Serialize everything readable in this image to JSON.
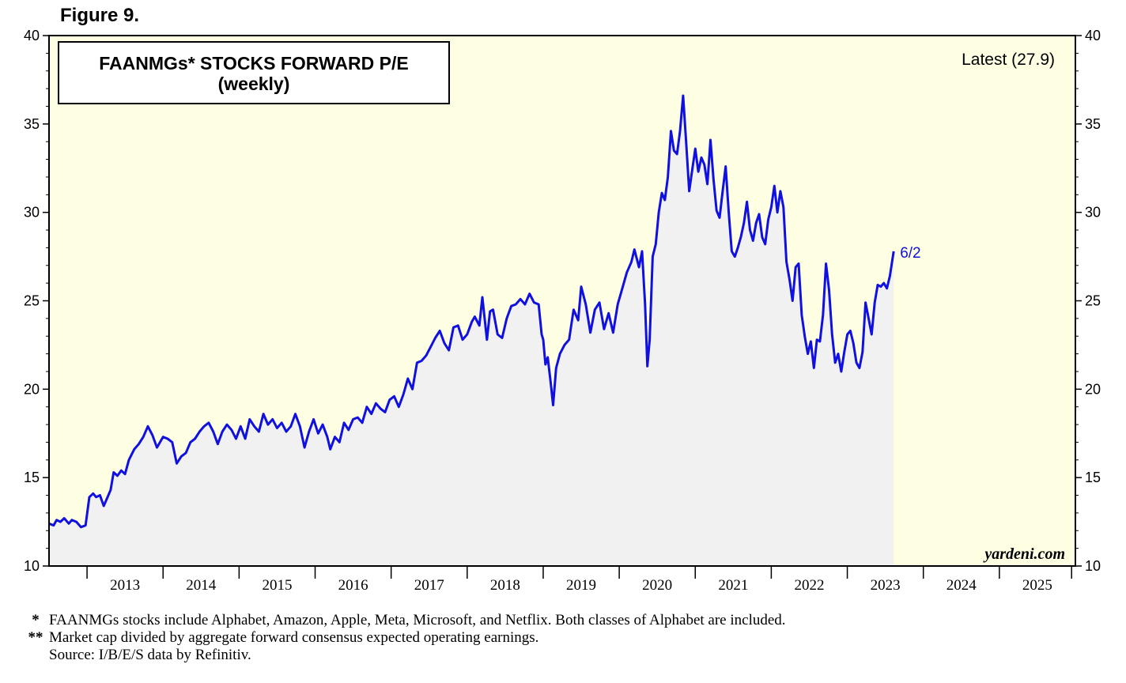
{
  "figure_label": "Figure 9.",
  "chart_data": {
    "type": "area",
    "title": "FAANMGs* STOCKS FORWARD P/E",
    "subtitle": "(weekly)",
    "latest_label": "Latest (27.9)",
    "end_label": "6/2",
    "watermark": "yardeni.com",
    "xlabel": "",
    "ylabel": "",
    "xlim": [
      2012.5,
      2026.0
    ],
    "ylim": [
      10,
      40
    ],
    "y_ticks": [
      10,
      15,
      20,
      25,
      30,
      35,
      40
    ],
    "year_labels": [
      "2013",
      "2014",
      "2015",
      "2016",
      "2017",
      "2018",
      "2019",
      "2020",
      "2021",
      "2022",
      "2023",
      "2024",
      "2025"
    ],
    "grid": false,
    "colors": {
      "line": "#1010e0",
      "fill": "#f1f1f1",
      "background": "#fefee2"
    },
    "series": [
      {
        "name": "FAANMGs forward P/E",
        "points": [
          [
            2012.5,
            12.4
          ],
          [
            2012.56,
            12.3
          ],
          [
            2012.6,
            12.6
          ],
          [
            2012.65,
            12.5
          ],
          [
            2012.7,
            12.7
          ],
          [
            2012.76,
            12.4
          ],
          [
            2012.8,
            12.6
          ],
          [
            2012.86,
            12.5
          ],
          [
            2012.92,
            12.2
          ],
          [
            2012.98,
            12.3
          ],
          [
            2013.03,
            13.9
          ],
          [
            2013.08,
            14.1
          ],
          [
            2013.12,
            13.9
          ],
          [
            2013.17,
            14.0
          ],
          [
            2013.22,
            13.4
          ],
          [
            2013.26,
            13.8
          ],
          [
            2013.31,
            14.3
          ],
          [
            2013.35,
            15.3
          ],
          [
            2013.4,
            15.1
          ],
          [
            2013.45,
            15.4
          ],
          [
            2013.5,
            15.2
          ],
          [
            2013.55,
            16.0
          ],
          [
            2013.62,
            16.6
          ],
          [
            2013.68,
            16.9
          ],
          [
            2013.74,
            17.3
          ],
          [
            2013.8,
            17.9
          ],
          [
            2013.86,
            17.4
          ],
          [
            2013.92,
            16.7
          ],
          [
            2014.0,
            17.3
          ],
          [
            2014.06,
            17.2
          ],
          [
            2014.12,
            17.0
          ],
          [
            2014.18,
            15.8
          ],
          [
            2014.24,
            16.2
          ],
          [
            2014.3,
            16.4
          ],
          [
            2014.36,
            17.0
          ],
          [
            2014.42,
            17.2
          ],
          [
            2014.48,
            17.6
          ],
          [
            2014.54,
            17.9
          ],
          [
            2014.6,
            18.1
          ],
          [
            2014.66,
            17.6
          ],
          [
            2014.72,
            16.9
          ],
          [
            2014.78,
            17.6
          ],
          [
            2014.84,
            18.0
          ],
          [
            2014.9,
            17.7
          ],
          [
            2014.96,
            17.2
          ],
          [
            2015.02,
            17.9
          ],
          [
            2015.08,
            17.2
          ],
          [
            2015.14,
            18.3
          ],
          [
            2015.2,
            17.9
          ],
          [
            2015.26,
            17.6
          ],
          [
            2015.32,
            18.6
          ],
          [
            2015.38,
            18.0
          ],
          [
            2015.44,
            18.3
          ],
          [
            2015.5,
            17.8
          ],
          [
            2015.56,
            18.1
          ],
          [
            2015.62,
            17.6
          ],
          [
            2015.68,
            17.9
          ],
          [
            2015.74,
            18.6
          ],
          [
            2015.8,
            17.9
          ],
          [
            2015.86,
            16.7
          ],
          [
            2015.92,
            17.6
          ],
          [
            2015.98,
            18.3
          ],
          [
            2016.04,
            17.5
          ],
          [
            2016.1,
            18.0
          ],
          [
            2016.16,
            17.3
          ],
          [
            2016.2,
            16.6
          ],
          [
            2016.26,
            17.3
          ],
          [
            2016.32,
            17.0
          ],
          [
            2016.38,
            18.1
          ],
          [
            2016.44,
            17.7
          ],
          [
            2016.5,
            18.3
          ],
          [
            2016.56,
            18.4
          ],
          [
            2016.62,
            18.1
          ],
          [
            2016.68,
            19.0
          ],
          [
            2016.74,
            18.6
          ],
          [
            2016.8,
            19.2
          ],
          [
            2016.86,
            18.9
          ],
          [
            2016.92,
            18.7
          ],
          [
            2016.98,
            19.4
          ],
          [
            2017.04,
            19.6
          ],
          [
            2017.1,
            19.0
          ],
          [
            2017.16,
            19.7
          ],
          [
            2017.22,
            20.6
          ],
          [
            2017.28,
            20.0
          ],
          [
            2017.34,
            21.5
          ],
          [
            2017.4,
            21.6
          ],
          [
            2017.46,
            21.9
          ],
          [
            2017.52,
            22.4
          ],
          [
            2017.58,
            22.9
          ],
          [
            2017.64,
            23.3
          ],
          [
            2017.7,
            22.6
          ],
          [
            2017.76,
            22.2
          ],
          [
            2017.82,
            23.5
          ],
          [
            2017.88,
            23.6
          ],
          [
            2017.94,
            22.8
          ],
          [
            2018.0,
            23.1
          ],
          [
            2018.06,
            23.8
          ],
          [
            2018.1,
            24.1
          ],
          [
            2018.16,
            23.6
          ],
          [
            2018.2,
            25.2
          ],
          [
            2018.26,
            22.8
          ],
          [
            2018.3,
            24.4
          ],
          [
            2018.34,
            24.5
          ],
          [
            2018.4,
            23.1
          ],
          [
            2018.46,
            22.9
          ],
          [
            2018.52,
            24.0
          ],
          [
            2018.58,
            24.7
          ],
          [
            2018.64,
            24.8
          ],
          [
            2018.7,
            25.1
          ],
          [
            2018.76,
            24.8
          ],
          [
            2018.82,
            25.4
          ],
          [
            2018.88,
            24.9
          ],
          [
            2018.94,
            24.8
          ],
          [
            2018.98,
            23.1
          ],
          [
            2019.0,
            22.8
          ],
          [
            2019.03,
            21.4
          ],
          [
            2019.06,
            21.8
          ],
          [
            2019.1,
            20.3
          ],
          [
            2019.13,
            19.1
          ],
          [
            2019.17,
            21.2
          ],
          [
            2019.22,
            22.0
          ],
          [
            2019.28,
            22.5
          ],
          [
            2019.34,
            22.8
          ],
          [
            2019.4,
            24.5
          ],
          [
            2019.46,
            23.9
          ],
          [
            2019.5,
            25.8
          ],
          [
            2019.56,
            24.8
          ],
          [
            2019.62,
            23.2
          ],
          [
            2019.68,
            24.5
          ],
          [
            2019.74,
            24.9
          ],
          [
            2019.8,
            23.4
          ],
          [
            2019.86,
            24.3
          ],
          [
            2019.92,
            23.2
          ],
          [
            2019.98,
            24.8
          ],
          [
            2020.04,
            25.7
          ],
          [
            2020.1,
            26.6
          ],
          [
            2020.16,
            27.2
          ],
          [
            2020.2,
            27.9
          ],
          [
            2020.26,
            26.9
          ],
          [
            2020.3,
            27.8
          ],
          [
            2020.34,
            24.8
          ],
          [
            2020.37,
            21.3
          ],
          [
            2020.4,
            22.8
          ],
          [
            2020.44,
            27.5
          ],
          [
            2020.48,
            28.2
          ],
          [
            2020.52,
            30.0
          ],
          [
            2020.56,
            31.1
          ],
          [
            2020.6,
            30.7
          ],
          [
            2020.64,
            32.0
          ],
          [
            2020.68,
            34.6
          ],
          [
            2020.72,
            33.5
          ],
          [
            2020.76,
            33.3
          ],
          [
            2020.8,
            34.6
          ],
          [
            2020.84,
            36.6
          ],
          [
            2020.88,
            34.0
          ],
          [
            2020.92,
            31.2
          ],
          [
            2020.96,
            32.4
          ],
          [
            2021.0,
            33.6
          ],
          [
            2021.04,
            32.3
          ],
          [
            2021.08,
            33.1
          ],
          [
            2021.12,
            32.7
          ],
          [
            2021.16,
            31.6
          ],
          [
            2021.2,
            34.1
          ],
          [
            2021.24,
            31.9
          ],
          [
            2021.28,
            30.1
          ],
          [
            2021.32,
            29.7
          ],
          [
            2021.36,
            31.2
          ],
          [
            2021.4,
            32.6
          ],
          [
            2021.44,
            30.0
          ],
          [
            2021.48,
            27.8
          ],
          [
            2021.52,
            27.5
          ],
          [
            2021.56,
            28.0
          ],
          [
            2021.6,
            28.6
          ],
          [
            2021.64,
            29.4
          ],
          [
            2021.68,
            30.6
          ],
          [
            2021.72,
            29.0
          ],
          [
            2021.76,
            28.4
          ],
          [
            2021.8,
            29.4
          ],
          [
            2021.84,
            29.9
          ],
          [
            2021.88,
            28.6
          ],
          [
            2021.92,
            28.2
          ],
          [
            2021.96,
            29.6
          ],
          [
            2022.0,
            30.3
          ],
          [
            2022.04,
            31.5
          ],
          [
            2022.08,
            30.0
          ],
          [
            2022.12,
            31.2
          ],
          [
            2022.16,
            30.3
          ],
          [
            2022.2,
            27.2
          ],
          [
            2022.24,
            26.2
          ],
          [
            2022.28,
            25.0
          ],
          [
            2022.32,
            26.9
          ],
          [
            2022.36,
            27.1
          ],
          [
            2022.4,
            24.2
          ],
          [
            2022.44,
            23.0
          ],
          [
            2022.48,
            22.0
          ],
          [
            2022.52,
            22.7
          ],
          [
            2022.56,
            21.2
          ],
          [
            2022.6,
            22.8
          ],
          [
            2022.64,
            22.7
          ],
          [
            2022.68,
            24.2
          ],
          [
            2022.72,
            27.1
          ],
          [
            2022.76,
            25.6
          ],
          [
            2022.8,
            23.1
          ],
          [
            2022.84,
            21.5
          ],
          [
            2022.88,
            22.0
          ],
          [
            2022.92,
            21.0
          ],
          [
            2022.96,
            22.1
          ],
          [
            2023.0,
            23.1
          ],
          [
            2023.04,
            23.3
          ],
          [
            2023.08,
            22.6
          ],
          [
            2023.12,
            21.5
          ],
          [
            2023.16,
            21.2
          ],
          [
            2023.2,
            22.1
          ],
          [
            2023.24,
            24.9
          ],
          [
            2023.28,
            24.0
          ],
          [
            2023.32,
            23.1
          ],
          [
            2023.36,
            24.9
          ],
          [
            2023.4,
            25.9
          ],
          [
            2023.44,
            25.8
          ],
          [
            2023.48,
            26.0
          ],
          [
            2023.52,
            25.7
          ],
          [
            2023.56,
            26.4
          ],
          [
            2023.61,
            27.8
          ]
        ]
      }
    ]
  },
  "footnotes": [
    {
      "mark": "*",
      "text": "FAANMGs stocks include Alphabet, Amazon, Apple, Meta, Microsoft, and Netflix. Both classes of Alphabet are included."
    },
    {
      "mark": "**",
      "text": "Market cap divided by aggregate forward consensus expected operating earnings."
    },
    {
      "mark": "",
      "text": "Source: I/B/E/S data by Refinitiv."
    }
  ]
}
